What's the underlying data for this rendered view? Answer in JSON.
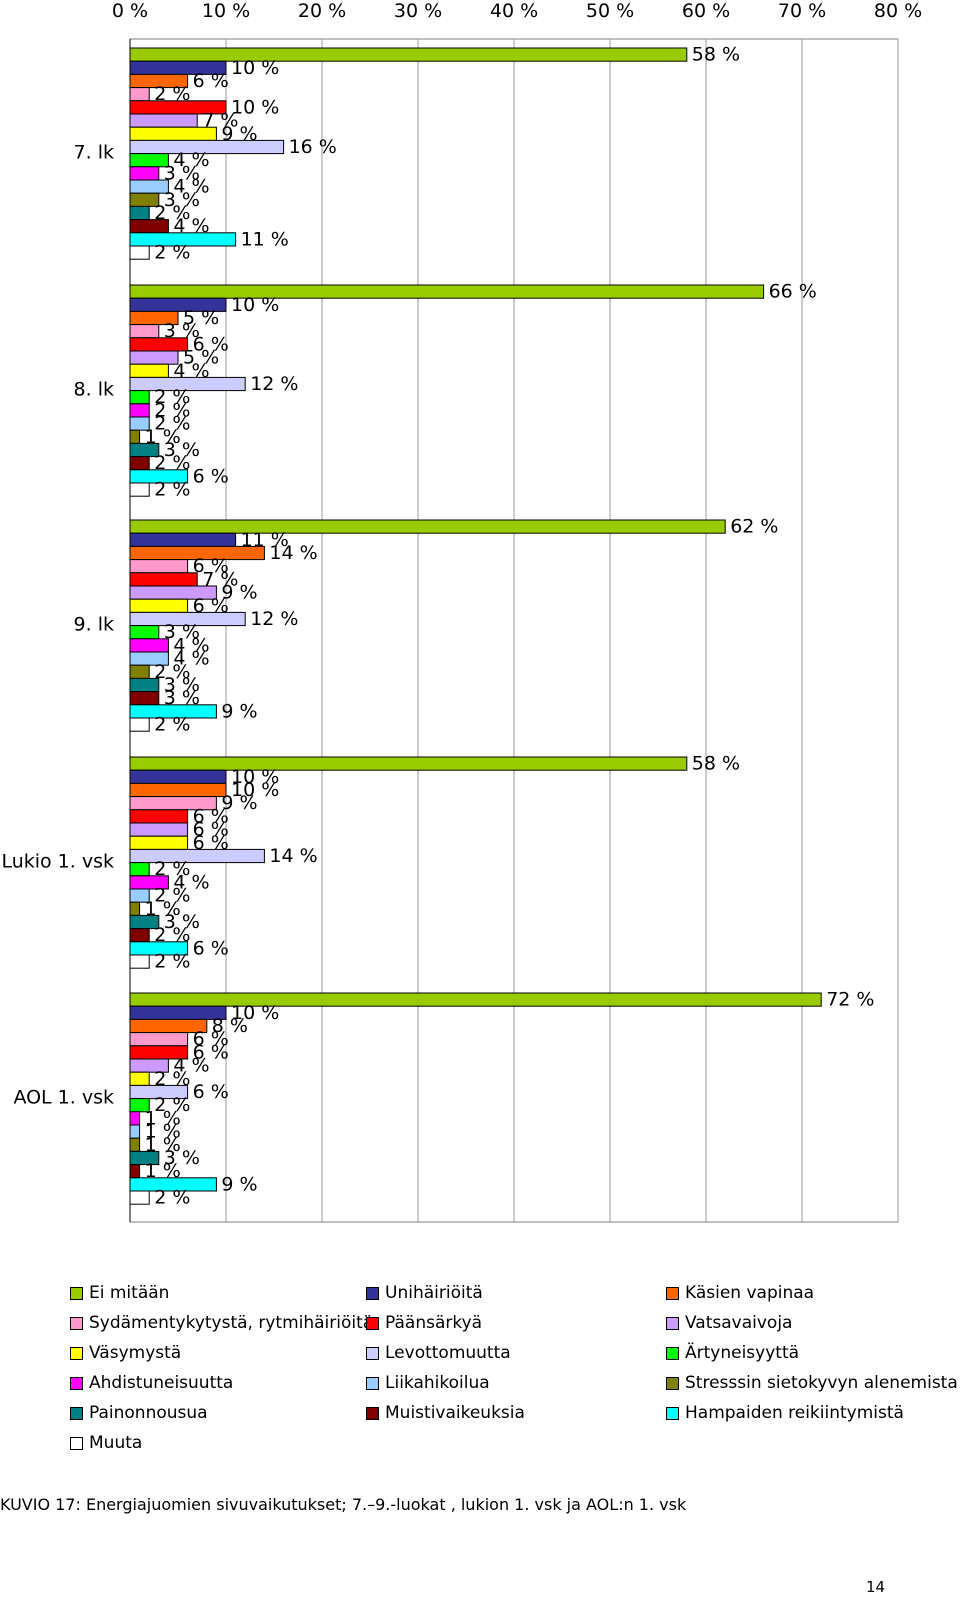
{
  "chart_data": {
    "type": "bar",
    "orientation": "horizontal",
    "x_ticks": [
      "0 %",
      "10 %",
      "20 %",
      "30 %",
      "40 %",
      "50 %",
      "60 %",
      "70 %",
      "80 %"
    ],
    "xlim": [
      0,
      80
    ],
    "grid": true,
    "legend_position": "bottom",
    "categories": [
      "7. lk",
      "8. lk",
      "9. lk",
      "Lukio 1. vsk",
      "AOL 1. vsk"
    ],
    "series": [
      {
        "name": "Ei mitään",
        "color": "#99cc00",
        "values": [
          58,
          66,
          62,
          58,
          72
        ]
      },
      {
        "name": "Unihäiriöitä",
        "color": "#333399",
        "values": [
          10,
          10,
          11,
          10,
          10
        ]
      },
      {
        "name": "Käsien vapinaa",
        "color": "#ff6600",
        "values": [
          6,
          5,
          14,
          10,
          8
        ]
      },
      {
        "name": "Sydämentykytystä, rytmihäiriöitä",
        "color": "#ff99cc",
        "values": [
          2,
          3,
          6,
          9,
          6
        ]
      },
      {
        "name": "Päänsärkyä",
        "color": "#ff0000",
        "values": [
          10,
          6,
          7,
          6,
          6
        ]
      },
      {
        "name": "Vatsavaivoja",
        "color": "#cc99ff",
        "values": [
          7,
          5,
          9,
          6,
          4
        ]
      },
      {
        "name": "Väsymystä",
        "color": "#ffff00",
        "values": [
          9,
          4,
          6,
          6,
          2
        ]
      },
      {
        "name": "Levottomuutta",
        "color": "#ccccff",
        "values": [
          16,
          12,
          12,
          14,
          6
        ]
      },
      {
        "name": "Ärtyneisyyttä",
        "color": "#00ff00",
        "values": [
          4,
          2,
          3,
          2,
          2
        ]
      },
      {
        "name": "Ahdistuneisuutta",
        "color": "#ff00ff",
        "values": [
          3,
          2,
          4,
          4,
          1
        ]
      },
      {
        "name": "Liikahikoilua",
        "color": "#99ccff",
        "values": [
          4,
          2,
          4,
          2,
          1
        ]
      },
      {
        "name": "Stresssin sietokyvyn alenemista",
        "color": "#808000",
        "values": [
          3,
          1,
          2,
          1,
          1
        ]
      },
      {
        "name": "Painonnousua",
        "color": "#008080",
        "values": [
          2,
          3,
          3,
          3,
          3
        ]
      },
      {
        "name": "Muistivaikeuksia",
        "color": "#800000",
        "values": [
          4,
          2,
          3,
          2,
          1
        ]
      },
      {
        "name": "Hampaiden reikiintymistä",
        "color": "#00ffff",
        "values": [
          11,
          6,
          9,
          6,
          9
        ]
      },
      {
        "name": "Muuta",
        "color": "#ffffff",
        "values": [
          2,
          2,
          2,
          2,
          2
        ]
      }
    ]
  },
  "caption": "KUVIO 17: Energiajuomien sivuvaikutukset; 7.–9.-luokat , lukion 1. vsk ja AOL:n 1. vsk",
  "page_number": "14"
}
